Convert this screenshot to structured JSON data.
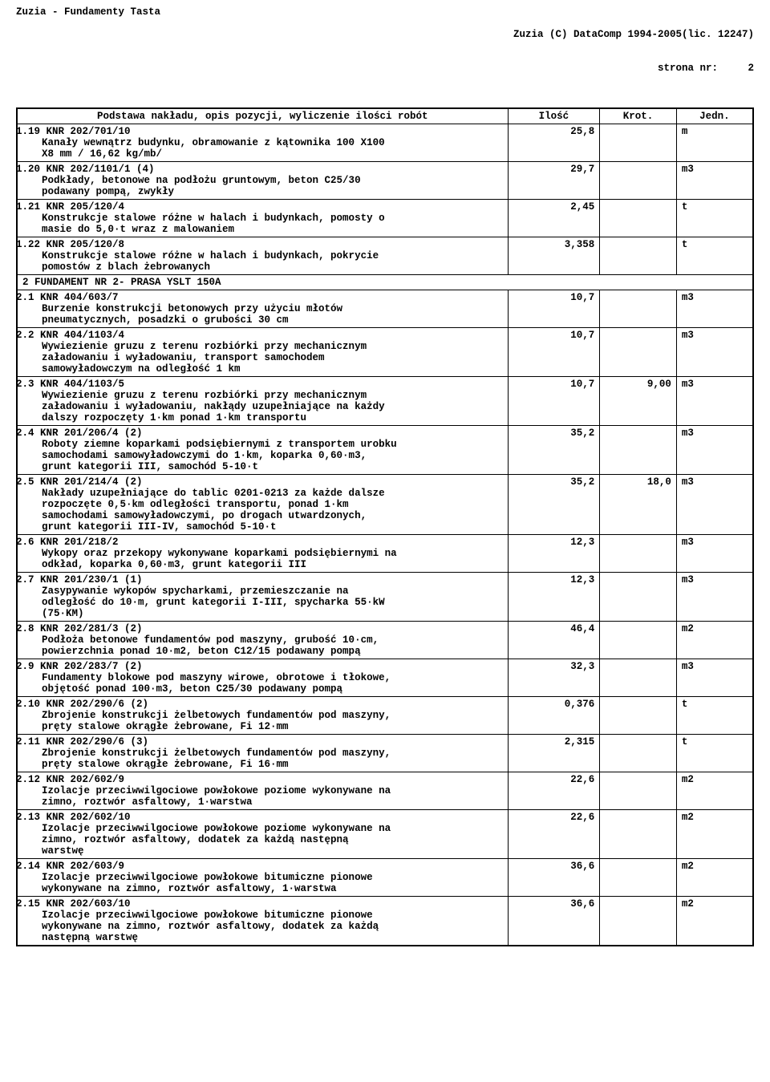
{
  "header": {
    "left": "Zuzia - Fundamenty Tasta",
    "right1": "Zuzia (C) DataComp 1994-2005(lic. 12247)",
    "right2": "strona nr:     2"
  },
  "columns": {
    "opis": "Podstawa nakładu, opis pozycji, wyliczenie ilości robót",
    "ilosc": "Ilość",
    "krot": "Krot.",
    "jedn": "Jedn."
  },
  "rows": [
    {
      "code": "1.19 KNR 202/701/10",
      "desc": [
        "Kanały wewnątrz budynku, obramowanie z kątownika 100 X100",
        "X8 mm / 16,62 kg/mb/"
      ],
      "ilosc": "25,8",
      "krot": "",
      "jedn": "m"
    },
    {
      "code": "1.20 KNR 202/1101/1 (4)",
      "desc": [
        "Podkłady, betonowe na podłożu gruntowym, beton C25/30",
        "podawany pompą, zwykły"
      ],
      "ilosc": "29,7",
      "krot": "",
      "jedn": "m3"
    },
    {
      "code": "1.21 KNR 205/120/4",
      "desc": [
        "Konstrukcje stalowe różne w halach i budynkach, pomosty o",
        "masie do 5,0·t wraz z malowaniem"
      ],
      "ilosc": "2,45",
      "krot": "",
      "jedn": "t"
    },
    {
      "code": "1.22 KNR 205/120/8",
      "desc": [
        "Konstrukcje stalowe różne w halach i budynkach, pokrycie",
        "pomostów z blach żebrowanych"
      ],
      "ilosc": "3,358",
      "krot": "",
      "jedn": "t"
    },
    {
      "section": "2 FUNDAMENT NR 2- PRASA YSLT 150A"
    },
    {
      "code": "2.1 KNR 404/603/7",
      "desc": [
        "Burzenie konstrukcji betonowych przy użyciu młotów",
        "pneumatycznych, posadzki o grubości 30 cm"
      ],
      "ilosc": "10,7",
      "krot": "",
      "jedn": "m3"
    },
    {
      "code": "2.2 KNR 404/1103/4",
      "desc": [
        "Wywiezienie gruzu z terenu rozbiórki przy mechanicznym",
        "załadowaniu i wyładowaniu, transport samochodem",
        "samowyładowczym na odległość 1 km"
      ],
      "ilosc": "10,7",
      "krot": "",
      "jedn": "m3"
    },
    {
      "code": "2.3 KNR 404/1103/5",
      "desc": [
        "Wywiezienie gruzu z terenu rozbiórki przy mechanicznym",
        "załadowaniu i wyładowaniu, nakłądy uzupełniające na każdy",
        "dalszy rozpoczęty 1·km ponad 1·km transportu"
      ],
      "ilosc": "10,7",
      "krot": "9,00",
      "jedn": "m3"
    },
    {
      "code": "2.4 KNR 201/206/4 (2)",
      "desc": [
        "Roboty ziemne koparkami podsiębiernymi z transportem urobku",
        "samochodami samowyładowczymi do 1·km, koparka 0,60·m3,",
        "grunt kategorii III, samochód 5-10·t"
      ],
      "ilosc": "35,2",
      "krot": "",
      "jedn": "m3"
    },
    {
      "code": "2.5 KNR 201/214/4 (2)",
      "desc": [
        "Nakłady uzupełniające do tablic 0201-0213 za każde dalsze",
        "rozpoczęte 0,5·km odległości transportu, ponad 1·km",
        "samochodami samowyładowczymi, po drogach utwardzonych,",
        "grunt kategorii III-IV, samochód 5-10·t"
      ],
      "ilosc": "35,2",
      "krot": "18,0",
      "jedn": "m3"
    },
    {
      "code": "2.6 KNR 201/218/2",
      "desc": [
        "Wykopy oraz przekopy wykonywane koparkami podsiębiernymi na",
        "odkład, koparka 0,60·m3, grunt kategorii III"
      ],
      "ilosc": "12,3",
      "krot": "",
      "jedn": "m3"
    },
    {
      "code": "2.7 KNR 201/230/1 (1)",
      "desc": [
        "Zasypywanie wykopów spycharkami, przemieszczanie na",
        "odległość do 10·m, grunt kategorii I-III, spycharka 55·kW",
        "(75·KM)"
      ],
      "ilosc": "12,3",
      "krot": "",
      "jedn": "m3"
    },
    {
      "code": "2.8 KNR 202/281/3 (2)",
      "desc": [
        "Podłoża betonowe fundamentów pod maszyny, grubość 10·cm,",
        "powierzchnia ponad 10·m2, beton C12/15 podawany pompą"
      ],
      "ilosc": "46,4",
      "krot": "",
      "jedn": "m2"
    },
    {
      "code": "2.9 KNR 202/283/7 (2)",
      "desc": [
        "Fundamenty blokowe pod maszyny wirowe, obrotowe i tłokowe,",
        "objętość ponad 100·m3, beton C25/30 podawany pompą"
      ],
      "ilosc": "32,3",
      "krot": "",
      "jedn": "m3"
    },
    {
      "code": "2.10 KNR 202/290/6 (2)",
      "desc": [
        "Zbrojenie konstrukcji żelbetowych fundamentów pod maszyny,",
        "pręty stalowe okrągłe żebrowane, Fi 12·mm"
      ],
      "ilosc": "0,376",
      "krot": "",
      "jedn": "t"
    },
    {
      "code": "2.11 KNR 202/290/6 (3)",
      "desc": [
        "Zbrojenie konstrukcji żelbetowych fundamentów pod maszyny,",
        "pręty stalowe okrągłe żebrowane, Fi 16·mm"
      ],
      "ilosc": "2,315",
      "krot": "",
      "jedn": "t"
    },
    {
      "code": "2.12 KNR 202/602/9",
      "desc": [
        "Izolacje przeciwwilgociowe powłokowe poziome wykonywane na",
        "zimno, roztwór asfaltowy, 1·warstwa"
      ],
      "ilosc": "22,6",
      "krot": "",
      "jedn": "m2"
    },
    {
      "code": "2.13 KNR 202/602/10",
      "desc": [
        "Izolacje przeciwwilgociowe powłokowe poziome wykonywane na",
        "zimno, roztwór asfaltowy, dodatek za każdą następną",
        "warstwę"
      ],
      "ilosc": "22,6",
      "krot": "",
      "jedn": "m2"
    },
    {
      "code": "2.14 KNR 202/603/9",
      "desc": [
        "Izolacje przeciwwilgociowe powłokowe bitumiczne pionowe",
        "wykonywane na zimno, roztwór asfaltowy, 1·warstwa"
      ],
      "ilosc": "36,6",
      "krot": "",
      "jedn": "m2"
    },
    {
      "code": "2.15 KNR 202/603/10",
      "desc": [
        "Izolacje przeciwwilgociowe powłokowe bitumiczne pionowe",
        "wykonywane na zimno, roztwór asfaltowy, dodatek za każdą",
        "następną warstwę"
      ],
      "ilosc": "36,6",
      "krot": "",
      "jedn": "m2"
    }
  ]
}
